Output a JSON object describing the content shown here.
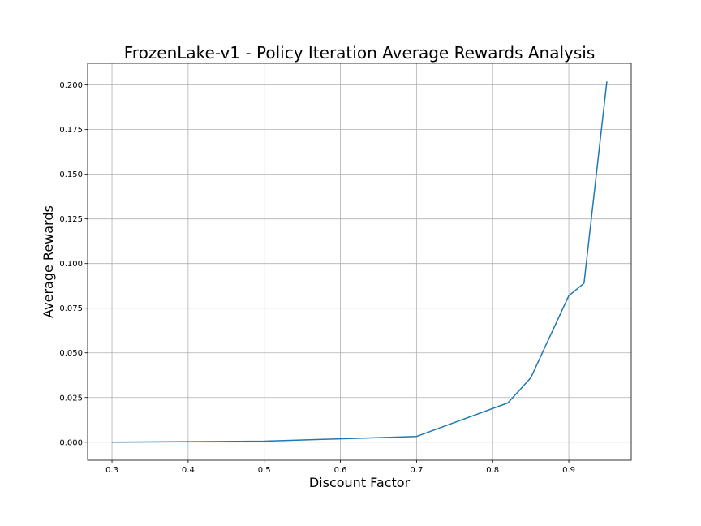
{
  "chart_data": {
    "type": "line",
    "title": "FrozenLake-v1 - Policy Iteration Average Rewards Analysis",
    "xlabel": "Discount Factor",
    "ylabel": "Average Rewards",
    "xlim": [
      0.268,
      0.982
    ],
    "ylim": [
      -0.0101,
      0.2121
    ],
    "xticks": [
      0.3,
      0.4,
      0.5,
      0.6,
      0.7,
      0.8,
      0.9
    ],
    "xtick_labels": [
      "0.3",
      "0.4",
      "0.5",
      "0.6",
      "0.7",
      "0.8",
      "0.9"
    ],
    "yticks": [
      0.0,
      0.025,
      0.05,
      0.075,
      0.1,
      0.125,
      0.15,
      0.175,
      0.2
    ],
    "ytick_labels": [
      "0.000",
      "0.025",
      "0.050",
      "0.075",
      "0.100",
      "0.125",
      "0.150",
      "0.175",
      "0.200"
    ],
    "grid": true,
    "series": [
      {
        "color": "#1f77b4",
        "x": [
          0.3,
          0.4,
          0.5,
          0.6,
          0.7,
          0.82,
          0.85,
          0.9,
          0.92,
          0.95
        ],
        "y": [
          0.0,
          0.0003,
          0.0006,
          0.0019,
          0.0032,
          0.022,
          0.036,
          0.082,
          0.089,
          0.202
        ]
      }
    ]
  }
}
